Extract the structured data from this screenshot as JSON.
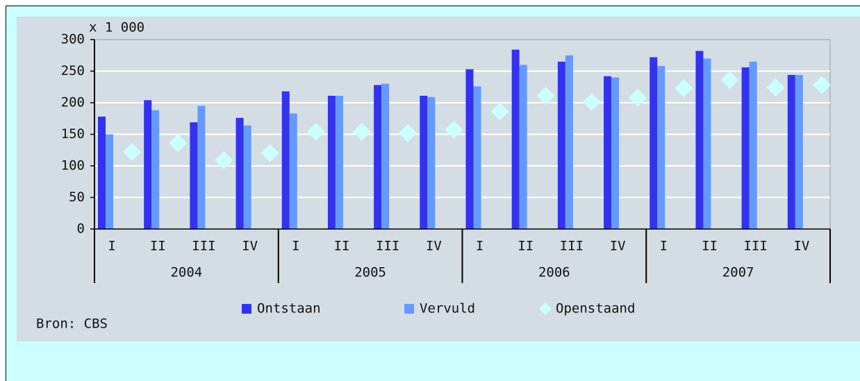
{
  "chart_data": {
    "type": "bar",
    "unit_label": "x 1 000",
    "source": "Bron: CBS",
    "categories": [
      "I",
      "II",
      "III",
      "IV",
      "I",
      "II",
      "III",
      "IV",
      "I",
      "II",
      "III",
      "IV",
      "I",
      "II",
      "III",
      "IV"
    ],
    "years": [
      "2004",
      "2005",
      "2006",
      "2007"
    ],
    "series": [
      {
        "name": "Ontstaan",
        "color": "#3333ee",
        "marker": "bar",
        "values": [
          178,
          204,
          169,
          176,
          218,
          211,
          228,
          211,
          253,
          284,
          265,
          242,
          272,
          282,
          256,
          244
        ]
      },
      {
        "name": "Vervuld",
        "color": "#6699ff",
        "marker": "bar",
        "values": [
          150,
          188,
          195,
          164,
          183,
          211,
          230,
          209,
          226,
          260,
          275,
          240,
          258,
          270,
          265,
          244
        ]
      },
      {
        "name": "Openstaand",
        "color": "#ccffff",
        "marker": "diamond",
        "values": [
          122,
          136,
          109,
          120,
          154,
          154,
          152,
          157,
          186,
          211,
          201,
          208,
          223,
          236,
          224,
          228
        ]
      }
    ],
    "ylim": [
      0,
      300
    ],
    "yticks": [
      0,
      50,
      100,
      150,
      200,
      250,
      300
    ],
    "grid": true,
    "legend": "bottom"
  }
}
